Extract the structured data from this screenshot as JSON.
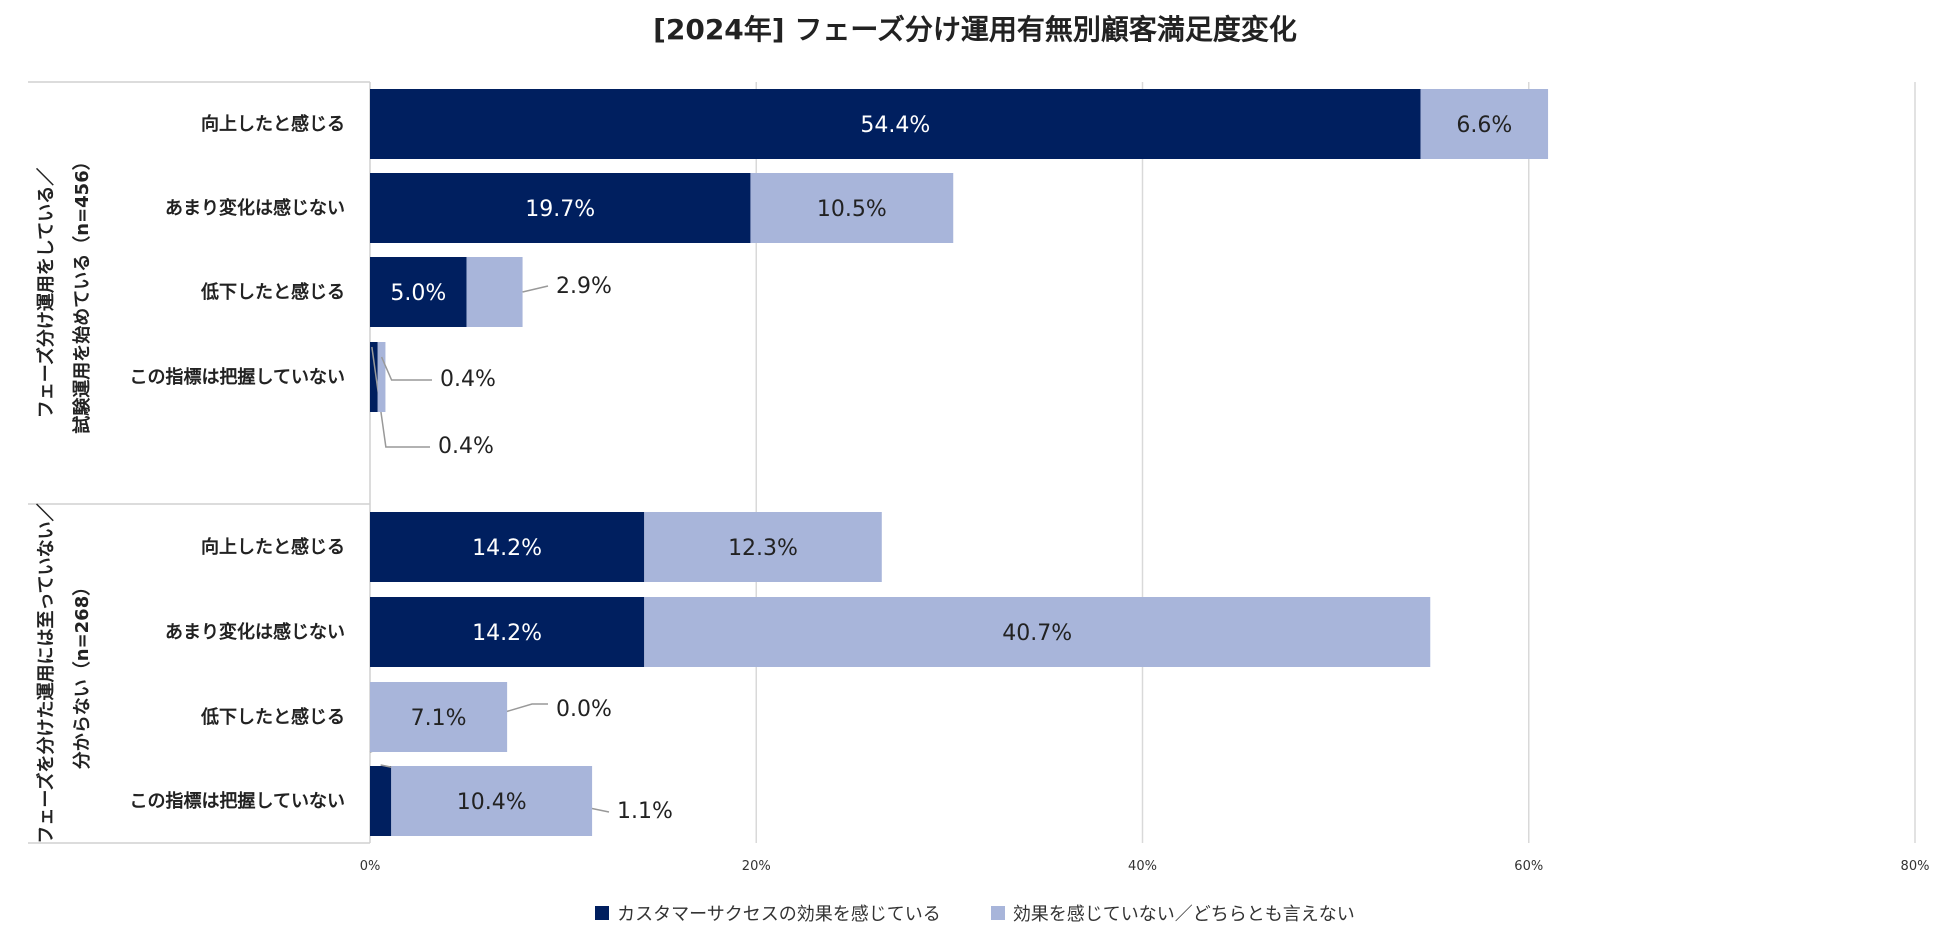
{
  "chart_data": {
    "type": "bar",
    "orientation": "horizontal",
    "stacked": true,
    "title": "[2024年] フェーズ分け運用有無別顧客満足度変化",
    "xlim": [
      0,
      80
    ],
    "xticks": [
      "0%",
      "20%",
      "40%",
      "60%",
      "80%"
    ],
    "grid": true,
    "legend_position": "bottom",
    "colors": {
      "series1": "#001f5f",
      "series2": "#a8b5da"
    },
    "series": [
      {
        "name": "カスタマーサクセスの効果を感じている"
      },
      {
        "name": "効果を感じていない／どちらとも言えない"
      }
    ],
    "groups": [
      {
        "label_lines": [
          "フェーズ分け運用をしている／",
          "試験運用を始めている（n=456）"
        ],
        "rows": [
          {
            "category": "向上したと感じる",
            "values": [
              54.4,
              6.6
            ],
            "labels": [
              "54.4%",
              "6.6%"
            ]
          },
          {
            "category": "あまり変化は感じない",
            "values": [
              19.7,
              10.5
            ],
            "labels": [
              "19.7%",
              "10.5%"
            ]
          },
          {
            "category": "低下したと感じる",
            "values": [
              5.0,
              2.9
            ],
            "labels": [
              "5.0%",
              "2.9%"
            ]
          },
          {
            "category": "この指標は把握していない",
            "values": [
              0.4,
              0.4
            ],
            "labels": [
              "0.4%",
              "0.4%"
            ]
          }
        ]
      },
      {
        "label_lines": [
          "フェーズを分けた運用には至っていない／",
          "分からない（n=268）"
        ],
        "rows": [
          {
            "category": "向上したと感じる",
            "values": [
              14.2,
              12.3
            ],
            "labels": [
              "14.2%",
              "12.3%"
            ]
          },
          {
            "category": "あまり変化は感じない",
            "values": [
              14.2,
              40.7
            ],
            "labels": [
              "14.2%",
              "40.7%"
            ]
          },
          {
            "category": "低下したと感じる",
            "values": [
              0.0,
              7.1
            ],
            "labels": [
              "0.0%",
              "7.1%"
            ]
          },
          {
            "category": "この指標は把握していない",
            "values": [
              1.1,
              10.4
            ],
            "labels": [
              "1.1%",
              "10.4%"
            ]
          }
        ]
      }
    ]
  }
}
